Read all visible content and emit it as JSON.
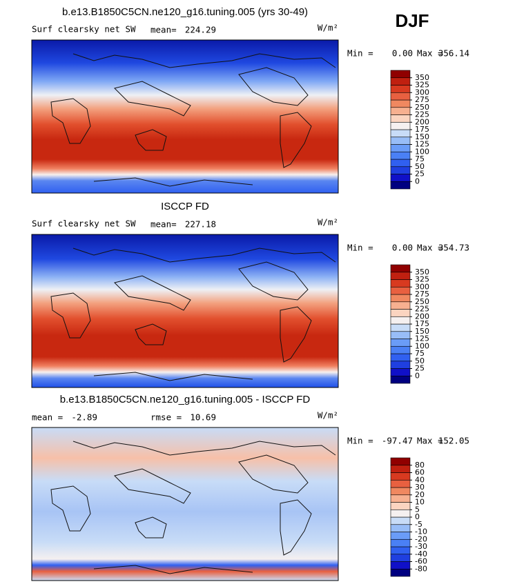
{
  "season": "DJF",
  "palette": [
    "#000080",
    "#1010c8",
    "#1f3fe0",
    "#3060f0",
    "#4a80f5",
    "#6a9cf7",
    "#98bdf7",
    "#c8dcf7",
    "#f5f0f0",
    "#fbd4c0",
    "#f7b090",
    "#f08860",
    "#e86040",
    "#d83a20",
    "#c02010",
    "#900000"
  ],
  "panels": [
    {
      "title": "b.e13.B1850C5CN.ne120_g16.tuning.005 (yrs 30-49)",
      "variable": "Surf clearsky net SW",
      "stats": [
        {
          "label": "mean=",
          "value": 224.29
        }
      ],
      "units": "W/m²",
      "range": {
        "min_label": "Min =",
        "min": {
          "value": 0,
          "label": "0.00"
        },
        "max_label": "Max =",
        "max": 356.14
      },
      "levels": [
        0,
        25,
        50,
        75,
        100,
        125,
        150,
        175,
        200,
        225,
        250,
        275,
        300,
        325,
        350
      ]
    },
    {
      "title": "ISCCP FD",
      "variable": "Surf clearsky net SW",
      "stats": [
        {
          "label": "mean=",
          "value": 227.18
        }
      ],
      "units": "W/m²",
      "range": {
        "min_label": "Min =",
        "min": {
          "value": 0,
          "label": "0.00"
        },
        "max_label": "Max =",
        "max": 354.73
      },
      "levels": [
        0,
        25,
        50,
        75,
        100,
        125,
        150,
        175,
        200,
        225,
        250,
        275,
        300,
        325,
        350
      ]
    },
    {
      "title": "b.e13.B1850C5CN.ne120_g16.tuning.005 - ISCCP FD",
      "stats": [
        {
          "label": "mean =",
          "value": -2.89
        },
        {
          "label": "rmse =",
          "value": 10.69
        }
      ],
      "units": "W/m²",
      "range": {
        "min_label": "Min =",
        "min": -97.47,
        "max_label": "Max =",
        "max": 152.05
      },
      "levels": [
        -80,
        -60,
        -40,
        -30,
        -20,
        -10,
        -5,
        0,
        5,
        10,
        20,
        30,
        40,
        60,
        80
      ]
    }
  ]
}
